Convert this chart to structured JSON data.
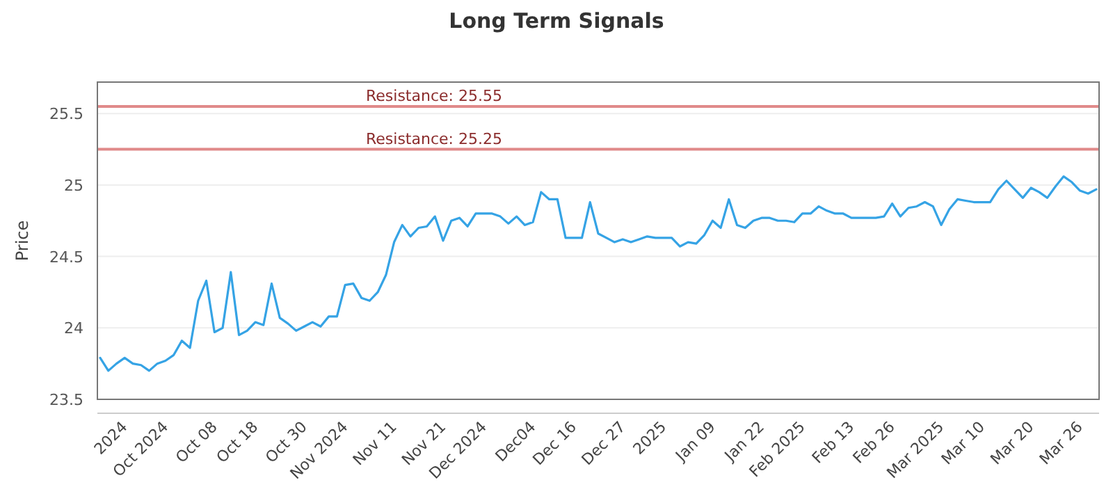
{
  "chart_data": {
    "type": "line",
    "title": "Long Term Signals",
    "ylabel": "Price",
    "categories": [
      null,
      null,
      null,
      "2024",
      null,
      null,
      null,
      null,
      "Oct 2024",
      null,
      null,
      null,
      null,
      null,
      "Oct 08",
      null,
      null,
      null,
      null,
      "Oct 18",
      null,
      null,
      null,
      null,
      null,
      "Oct 30",
      null,
      null,
      null,
      null,
      "Nov 2024",
      null,
      null,
      null,
      null,
      null,
      "Nov 11",
      null,
      null,
      null,
      null,
      null,
      "Nov 21",
      null,
      null,
      null,
      null,
      "Dec 2024",
      null,
      null,
      null,
      null,
      null,
      "Dec04",
      null,
      null,
      null,
      null,
      "Dec 16",
      null,
      null,
      null,
      null,
      null,
      "Dec 27",
      null,
      null,
      null,
      null,
      "2025",
      null,
      null,
      null,
      null,
      null,
      "Jan 09",
      null,
      null,
      null,
      null,
      null,
      "Jan 22",
      null,
      null,
      null,
      null,
      "Feb 2025",
      null,
      null,
      null,
      null,
      null,
      "Feb 13",
      null,
      null,
      null,
      null,
      "Feb 26",
      null,
      null,
      null,
      null,
      null,
      "Mar 2025",
      null,
      null,
      null,
      null,
      "Mar 10",
      null,
      null,
      null,
      null,
      null,
      "Mar 20",
      null,
      null,
      null,
      null,
      null,
      "Mar 26",
      null,
      null
    ],
    "series": [
      {
        "color": "#35a3e5",
        "values": [
          23.79,
          23.7,
          23.75,
          23.79,
          23.75,
          23.74,
          23.7,
          23.75,
          23.77,
          23.81,
          23.91,
          23.86,
          24.19,
          24.33,
          23.97,
          24.0,
          24.39,
          23.95,
          23.98,
          24.04,
          24.02,
          24.31,
          24.07,
          24.03,
          23.98,
          24.01,
          24.04,
          24.01,
          24.08,
          24.08,
          24.3,
          24.31,
          24.21,
          24.19,
          24.25,
          24.37,
          24.6,
          24.72,
          24.64,
          24.7,
          24.71,
          24.78,
          24.61,
          24.75,
          24.77,
          24.71,
          24.8,
          24.8,
          24.8,
          24.78,
          24.73,
          24.78,
          24.72,
          24.74,
          24.95,
          24.9,
          24.9,
          24.63,
          24.63,
          24.63,
          24.88,
          24.66,
          24.63,
          24.6,
          24.62,
          24.6,
          24.62,
          24.64,
          24.63,
          24.63,
          24.63,
          24.57,
          24.6,
          24.59,
          24.65,
          24.75,
          24.7,
          24.9,
          24.72,
          24.7,
          24.75,
          24.77,
          24.77,
          24.75,
          24.75,
          24.74,
          24.8,
          24.8,
          24.85,
          24.82,
          24.8,
          24.8,
          24.77,
          24.77,
          24.77,
          24.77,
          24.78,
          24.87,
          24.78,
          24.84,
          24.85,
          24.88,
          24.85,
          24.72,
          24.83,
          24.9,
          24.89,
          24.88,
          24.88,
          24.88,
          24.97,
          25.03,
          24.97,
          24.91,
          24.98,
          24.95,
          24.91,
          24.99,
          25.06,
          25.02,
          24.96,
          24.94,
          24.97
        ]
      }
    ],
    "ylim": [
      23.5,
      25.72
    ],
    "yticks": [
      23.5,
      24.0,
      24.5,
      25.0,
      25.5
    ],
    "grid": "y",
    "marker": "none",
    "line_style": "solid",
    "ref_lines": [
      {
        "axis": "y",
        "value": 25.55,
        "label": "Resistance: 25.55",
        "color": "#e08a8a"
      },
      {
        "axis": "y",
        "value": 25.25,
        "label": "Resistance: 25.25",
        "color": "#e08a8a"
      }
    ]
  }
}
